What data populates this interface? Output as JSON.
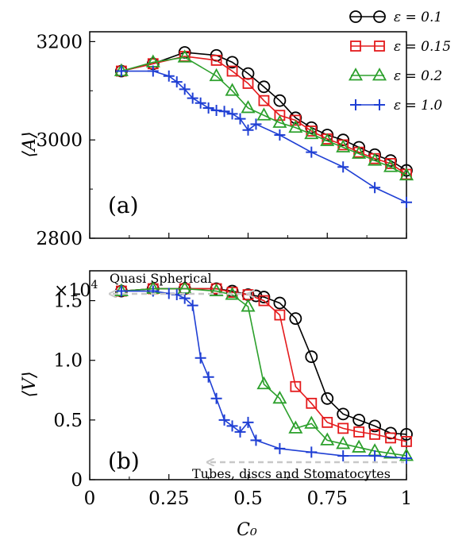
{
  "chart_data": [
    {
      "type": "line",
      "panel_label": "(a)",
      "ylabel": "⟨A⟩",
      "ylim": [
        2800,
        3220
      ],
      "xlim": [
        0,
        1
      ],
      "yticks": [
        2800,
        3000,
        3200
      ],
      "series": [
        {
          "name": "ε = 0.1",
          "color": "#000000",
          "marker": "circle",
          "x": [
            0.1,
            0.2,
            0.3,
            0.4,
            0.45,
            0.5,
            0.55,
            0.6,
            0.65,
            0.7,
            0.75,
            0.8,
            0.85,
            0.9,
            0.95,
            1.0
          ],
          "y": [
            3140,
            3155,
            3178,
            3172,
            3158,
            3135,
            3108,
            3080,
            3045,
            3025,
            3010,
            3000,
            2985,
            2970,
            2958,
            2938
          ]
        },
        {
          "name": "ε = 0.15",
          "color": "#e41a1c",
          "marker": "square",
          "x": [
            0.1,
            0.2,
            0.3,
            0.4,
            0.45,
            0.5,
            0.55,
            0.6,
            0.65,
            0.7,
            0.75,
            0.8,
            0.85,
            0.9,
            0.95,
            1.0
          ],
          "y": [
            3140,
            3155,
            3170,
            3162,
            3140,
            3115,
            3080,
            3050,
            3040,
            3018,
            3002,
            2990,
            2975,
            2962,
            2952,
            2930
          ]
        },
        {
          "name": "ε = 0.2",
          "color": "#2ca02c",
          "marker": "triangle",
          "x": [
            0.1,
            0.2,
            0.3,
            0.4,
            0.45,
            0.5,
            0.55,
            0.6,
            0.65,
            0.7,
            0.75,
            0.8,
            0.85,
            0.9,
            0.95,
            1.0
          ],
          "y": [
            3140,
            3158,
            3168,
            3130,
            3100,
            3065,
            3050,
            3035,
            3025,
            3012,
            2998,
            2985,
            2972,
            2958,
            2945,
            2928
          ]
        },
        {
          "name": "ε = 1.0",
          "color": "#1f3fd4",
          "marker": "plus",
          "x": [
            0.1,
            0.2,
            0.25,
            0.275,
            0.3,
            0.325,
            0.35,
            0.375,
            0.4,
            0.425,
            0.45,
            0.475,
            0.5,
            0.525,
            0.6,
            0.7,
            0.8,
            0.9,
            1.0
          ],
          "y": [
            3140,
            3140,
            3130,
            3118,
            3103,
            3085,
            3075,
            3065,
            3060,
            3058,
            3053,
            3043,
            3020,
            3032,
            3010,
            2975,
            2945,
            2903,
            2873
          ]
        }
      ]
    },
    {
      "type": "line",
      "panel_label": "(b)",
      "ylabel": "⟨V⟩",
      "xlabel": "C₀",
      "multiplier": "×10",
      "multiplier_exp": "4",
      "ylim": [
        0,
        1.75
      ],
      "xlim": [
        0,
        1
      ],
      "yticks": [
        0,
        0.5,
        1.0,
        1.5
      ],
      "ytick_labels": [
        "0",
        "0.5",
        "1.0",
        "1.5"
      ],
      "xticks": [
        0,
        0.25,
        0.5,
        0.75,
        1
      ],
      "xtick_labels": [
        "0",
        "0.25",
        "0.5",
        "0.75",
        "1"
      ],
      "annotations": [
        "Quasi Spherical",
        "Tubes, discs and Stomatocytes"
      ],
      "series": [
        {
          "name": "ε = 0.1",
          "color": "#000000",
          "marker": "circle",
          "x": [
            0.1,
            0.2,
            0.3,
            0.4,
            0.45,
            0.5,
            0.525,
            0.55,
            0.6,
            0.65,
            0.7,
            0.75,
            0.8,
            0.85,
            0.9,
            0.95,
            1.0
          ],
          "y": [
            1.58,
            1.6,
            1.6,
            1.6,
            1.58,
            1.55,
            1.54,
            1.53,
            1.48,
            1.35,
            1.03,
            0.68,
            0.55,
            0.5,
            0.45,
            0.39,
            0.38
          ]
        },
        {
          "name": "ε = 0.15",
          "color": "#e41a1c",
          "marker": "square",
          "x": [
            0.1,
            0.2,
            0.3,
            0.4,
            0.45,
            0.5,
            0.55,
            0.6,
            0.65,
            0.7,
            0.75,
            0.8,
            0.85,
            0.9,
            0.95,
            1.0
          ],
          "y": [
            1.58,
            1.6,
            1.6,
            1.6,
            1.57,
            1.55,
            1.5,
            1.38,
            0.78,
            0.64,
            0.48,
            0.43,
            0.4,
            0.38,
            0.35,
            0.32
          ]
        },
        {
          "name": "ε = 0.2",
          "color": "#2ca02c",
          "marker": "triangle",
          "x": [
            0.1,
            0.2,
            0.3,
            0.4,
            0.45,
            0.5,
            0.55,
            0.6,
            0.65,
            0.7,
            0.75,
            0.8,
            0.85,
            0.9,
            0.95,
            1.0
          ],
          "y": [
            1.58,
            1.6,
            1.6,
            1.58,
            1.55,
            1.45,
            0.8,
            0.68,
            0.43,
            0.47,
            0.33,
            0.3,
            0.27,
            0.24,
            0.22,
            0.2
          ]
        },
        {
          "name": "ε = 1.0",
          "color": "#1f3fd4",
          "marker": "plus",
          "x": [
            0.1,
            0.2,
            0.25,
            0.275,
            0.3,
            0.325,
            0.35,
            0.375,
            0.4,
            0.425,
            0.45,
            0.475,
            0.5,
            0.525,
            0.6,
            0.7,
            0.8,
            0.9,
            1.0
          ],
          "y": [
            1.58,
            1.58,
            1.56,
            1.55,
            1.52,
            1.46,
            1.02,
            0.86,
            0.68,
            0.5,
            0.45,
            0.4,
            0.48,
            0.33,
            0.26,
            0.23,
            0.2,
            0.2,
            0.18
          ]
        }
      ]
    }
  ]
}
